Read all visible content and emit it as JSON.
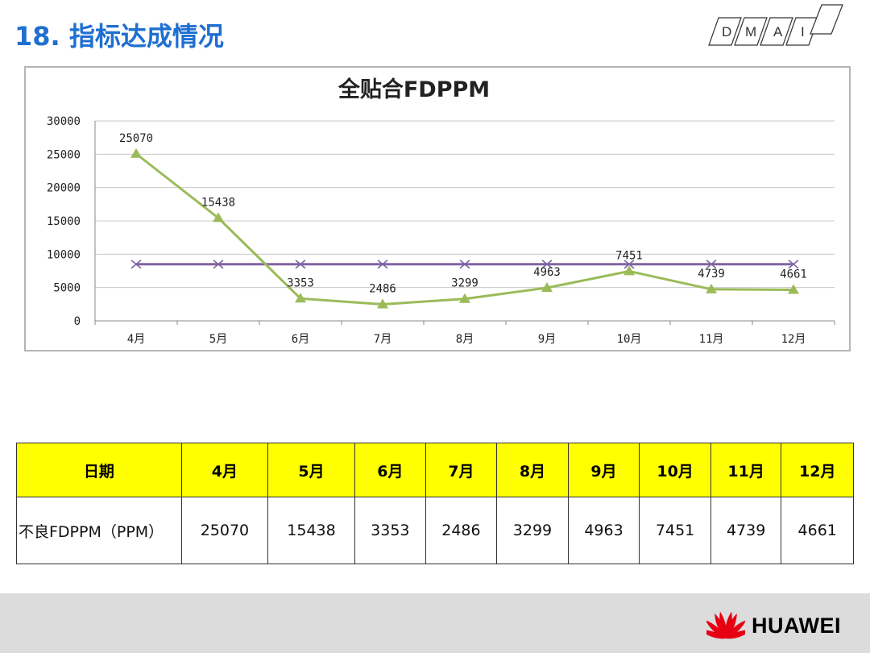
{
  "page": {
    "title": "18. 指标达成情况",
    "dmai_letters": [
      "D",
      "M",
      "A",
      "I"
    ],
    "brand": "HUAWEI",
    "accent_color": "#1f6fd0",
    "logo_color": "#e60012"
  },
  "chart_data": {
    "type": "line",
    "title": "全贴合FDPPM",
    "categories": [
      "4月",
      "5月",
      "6月",
      "7月",
      "8月",
      "9月",
      "10月",
      "11月",
      "12月"
    ],
    "series": [
      {
        "values": [
          25070,
          15438,
          3353,
          2486,
          3299,
          4963,
          7451,
          4739,
          4661
        ],
        "color": "#9bbb59",
        "marker": "triangle",
        "data_labels": true
      },
      {
        "values": [
          8500,
          8500,
          8500,
          8500,
          8500,
          8500,
          8500,
          8500,
          8500
        ],
        "color": "#8064a2",
        "marker": "x",
        "data_labels": false
      }
    ],
    "ylim": [
      0,
      30000
    ],
    "yticks": [
      0,
      5000,
      10000,
      15000,
      20000,
      25000,
      30000
    ],
    "grid": true
  },
  "table": {
    "header": [
      "日期",
      "4月",
      "5月",
      "6月",
      "7月",
      "8月",
      "9月",
      "10月",
      "11月",
      "12月"
    ],
    "row_label": "不良FDPPM（PPM）",
    "values": [
      "25070",
      "15438",
      "3353",
      "2486",
      "3299",
      "4963",
      "7451",
      "4739",
      "4661"
    ]
  }
}
